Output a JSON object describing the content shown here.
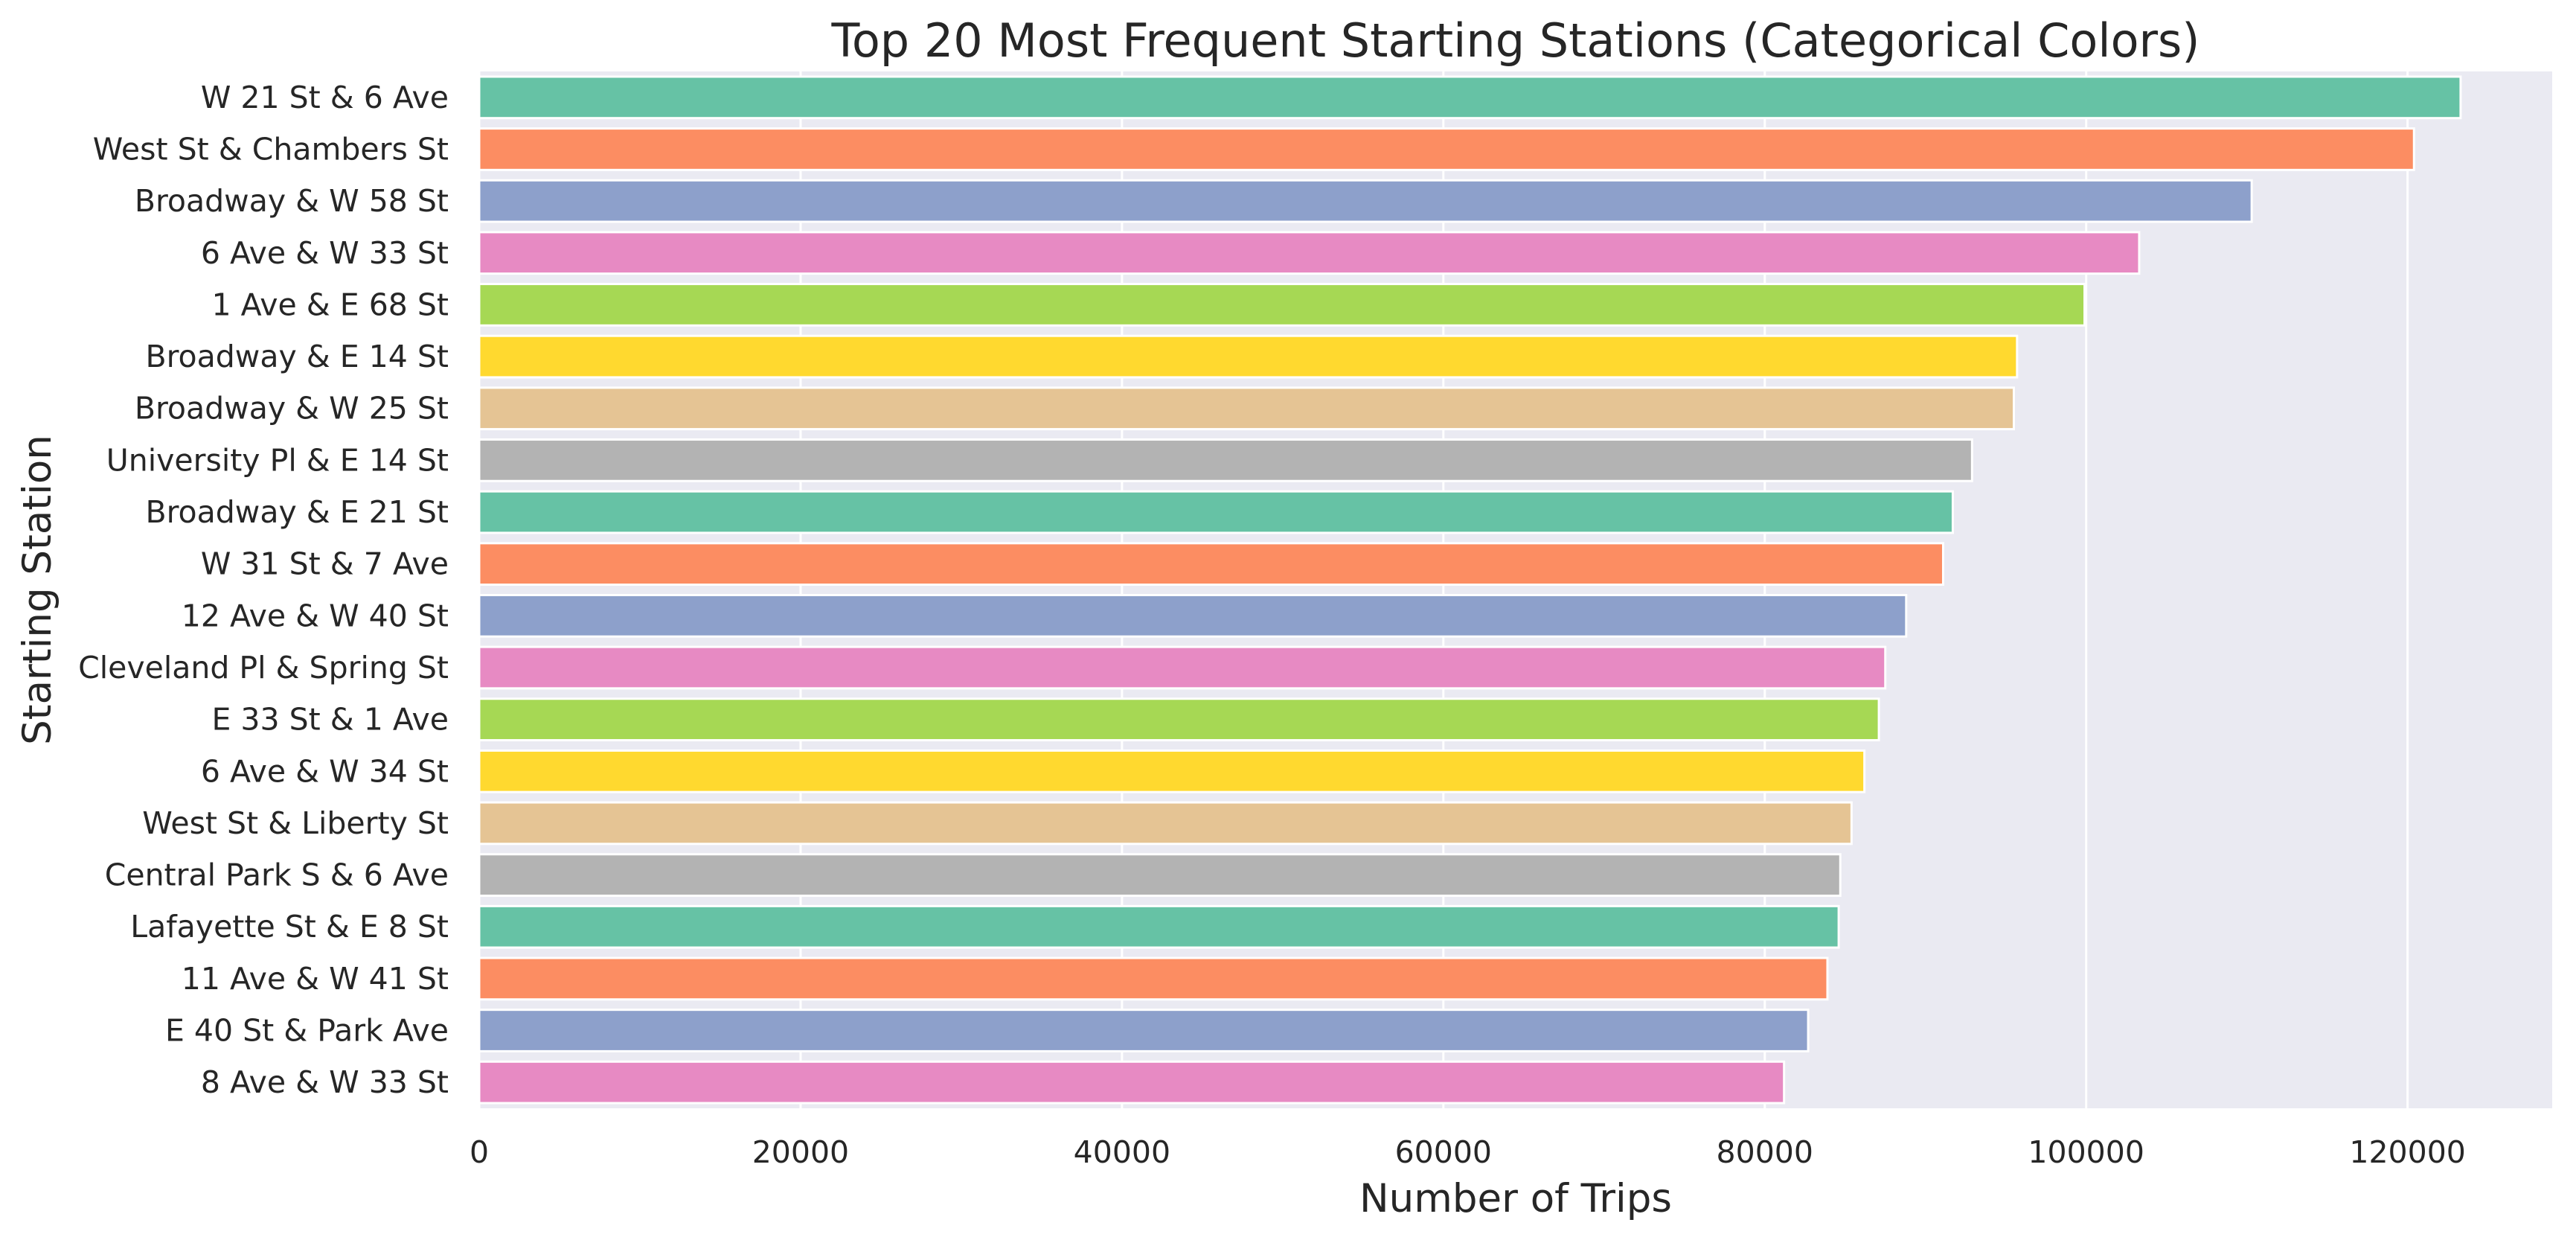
{
  "chart_data": {
    "type": "bar",
    "orientation": "horizontal",
    "title": "Top 20 Most Frequent Starting Stations (Categorical Colors)",
    "xlabel": "Number of Trips",
    "ylabel": "Starting Station",
    "xlim": [
      0,
      129000
    ],
    "xticks": [
      0,
      20000,
      40000,
      60000,
      80000,
      100000,
      120000
    ],
    "xtick_labels": [
      "0",
      "20000",
      "40000",
      "60000",
      "80000",
      "100000",
      "120000"
    ],
    "grid": true,
    "categories": [
      "W 21 St & 6 Ave",
      "West St & Chambers St",
      "Broadway & W 58 St",
      "6 Ave & W 33 St",
      "1 Ave & E 68 St",
      "Broadway & E 14 St",
      "Broadway & W 25 St",
      "University Pl & E 14 St",
      "Broadway & E 21 St",
      "W 31 St & 7 Ave",
      "12 Ave & W 40 St",
      "Cleveland Pl & Spring St",
      "E 33 St & 1 Ave",
      "6 Ave & W 34 St",
      "West St & Liberty St",
      "Central Park S & 6 Ave",
      "Lafayette St & E 8 St",
      "11 Ave & W 41 St",
      "E 40 St & Park Ave",
      "8 Ave & W 33 St"
    ],
    "values": [
      123300,
      120400,
      110300,
      103300,
      99900,
      95700,
      95500,
      92900,
      91700,
      91100,
      88800,
      87500,
      87100,
      86200,
      85400,
      84700,
      84600,
      83900,
      82700,
      81200
    ],
    "colors": [
      "#66c2a5",
      "#fc8d62",
      "#8da0cb",
      "#e78ac3",
      "#a6d854",
      "#ffd92f",
      "#e5c494",
      "#b3b3b3",
      "#66c2a5",
      "#fc8d62",
      "#8da0cb",
      "#e78ac3",
      "#a6d854",
      "#ffd92f",
      "#e5c494",
      "#b3b3b3",
      "#66c2a5",
      "#fc8d62",
      "#8da0cb",
      "#e78ac3"
    ],
    "plot_background": "#eaeaf2",
    "grid_color": "#ffffff"
  }
}
